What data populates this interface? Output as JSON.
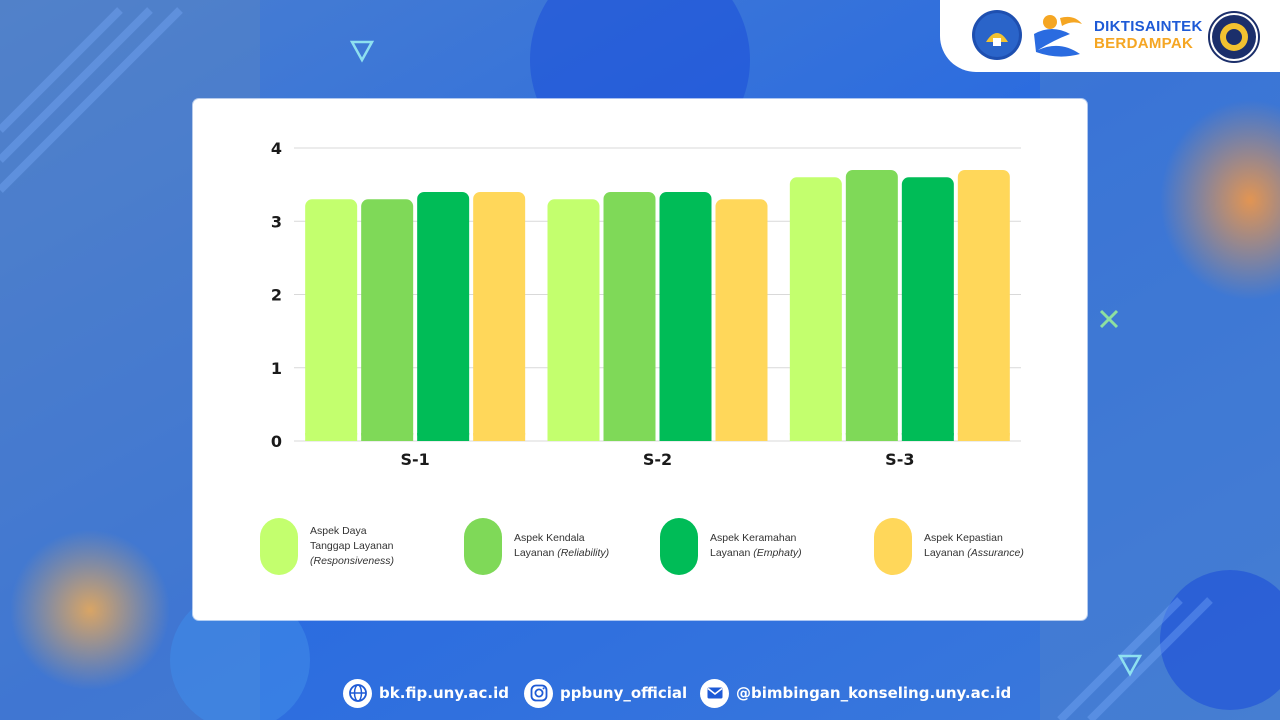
{
  "header": {
    "brand_line1": "DIKTISAINTEK",
    "brand_line2": "BERDAMPAK",
    "logos": [
      "kemdiktisaintek-logo-icon",
      "berdampak-logo-icon",
      "uny-seal-icon"
    ]
  },
  "colors": {
    "s1_series": "#c3ff6e",
    "s2_series": "#7fd958",
    "s3_series": "#00bc57",
    "s4_series": "#ffd75a",
    "brand_blue": "#1e5ad6",
    "brand_orange": "#f5a623"
  },
  "chart_data": {
    "type": "bar",
    "title": "",
    "xlabel": "",
    "ylabel": "",
    "categories": [
      "S-1",
      "S-2",
      "S-3"
    ],
    "ylim": [
      0,
      4
    ],
    "yticks": [
      "0",
      "1",
      "2",
      "3",
      "4"
    ],
    "grid": true,
    "legend_position": "bottom",
    "series": [
      {
        "name": "Aspek Daya Tanggap Layanan (Responsiveness)",
        "values": [
          3.3,
          3.3,
          3.6
        ]
      },
      {
        "name": "Aspek Kendala Layanan (Reliability)",
        "values": [
          3.3,
          3.4,
          3.7
        ]
      },
      {
        "name": "Aspek Keramahan Layanan (Emphaty)",
        "values": [
          3.4,
          3.4,
          3.6
        ]
      },
      {
        "name": "Aspek Kepastian Layanan (Assurance)",
        "values": [
          3.4,
          3.3,
          3.7
        ]
      }
    ]
  },
  "legend": [
    {
      "line1": "Aspek Daya",
      "line2": "Tanggap Layanan",
      "italic": "(Responsiveness)"
    },
    {
      "line1": "Aspek Kendala",
      "line2": "Layanan",
      "italic": "(Reliability)"
    },
    {
      "line1": "Aspek Keramahan",
      "line2": "Layanan",
      "italic": "(Emphaty)"
    },
    {
      "line1": "Aspek Kepastian",
      "line2": "Layanan",
      "italic": "(Assurance)"
    }
  ],
  "footer": {
    "website": "bk.fip.uny.ac.id",
    "instagram": "ppbuny_official",
    "email": "@bimbingan_konseling.uny.ac.id"
  }
}
